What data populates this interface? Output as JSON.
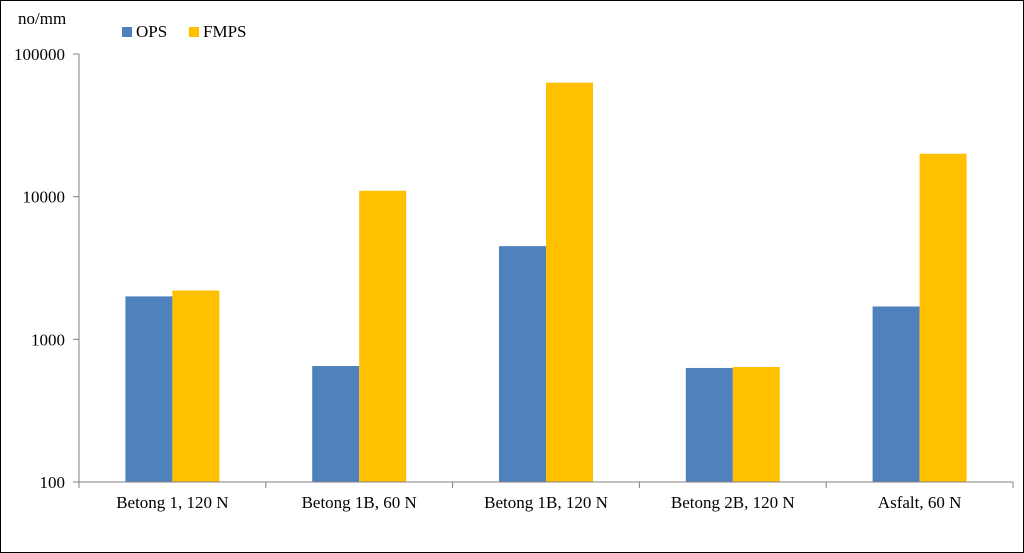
{
  "chart_data": {
    "type": "bar",
    "title": "",
    "xlabel": "",
    "ylabel": "no/mm",
    "yscale": "log",
    "ylim": [
      100,
      100000
    ],
    "yticks": [
      100,
      1000,
      10000,
      100000
    ],
    "ytick_labels": [
      "100",
      "1000",
      "10000",
      "100000"
    ],
    "grid": false,
    "legend_position": "top-left",
    "categories": [
      "Betong 1, 120 N",
      "Betong 1B, 60 N",
      "Betong 1B, 120 N",
      "Betong 2B, 120 N",
      "Asfalt, 60 N"
    ],
    "series": [
      {
        "name": "OPS",
        "color": "#4F81BD",
        "values": [
          2000,
          650,
          4500,
          630,
          1700
        ]
      },
      {
        "name": "FMPS",
        "color": "#FFC000",
        "values": [
          2200,
          11000,
          63000,
          640,
          20000
        ]
      }
    ]
  }
}
